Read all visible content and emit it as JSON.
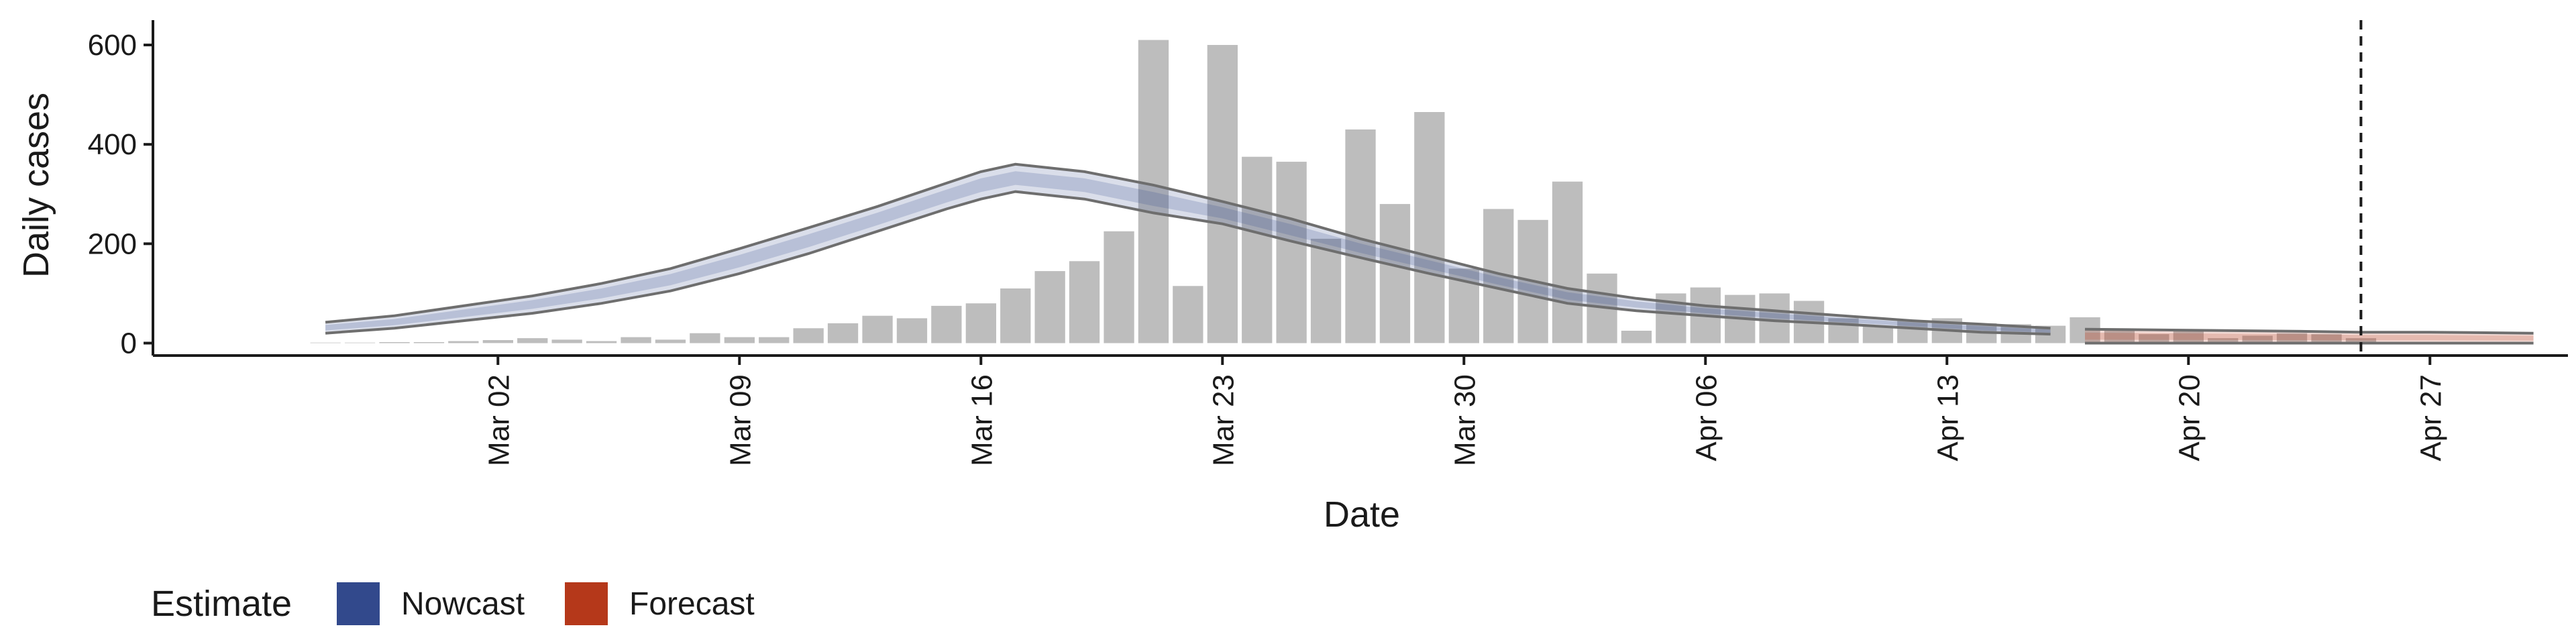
{
  "chart_data": {
    "type": "bar",
    "xlabel": "Date",
    "ylabel": "Daily cases",
    "ylim": [
      -25,
      650
    ],
    "xlim": [
      "2020-02-21",
      "2020-05-01"
    ],
    "yticks": [
      0,
      200,
      400,
      600
    ],
    "xticks": [
      {
        "date": "2020-03-02",
        "label": "Mar 02"
      },
      {
        "date": "2020-03-09",
        "label": "Mar 09"
      },
      {
        "date": "2020-03-16",
        "label": "Mar 16"
      },
      {
        "date": "2020-03-23",
        "label": "Mar 23"
      },
      {
        "date": "2020-03-30",
        "label": "Mar 30"
      },
      {
        "date": "2020-04-06",
        "label": "Apr 06"
      },
      {
        "date": "2020-04-13",
        "label": "Apr 13"
      },
      {
        "date": "2020-04-20",
        "label": "Apr 20"
      },
      {
        "date": "2020-04-27",
        "label": "Apr 27"
      }
    ],
    "grid": false,
    "vline_date": "2020-04-25",
    "bars": {
      "dates": [
        "2020-02-26",
        "2020-02-27",
        "2020-02-28",
        "2020-02-29",
        "2020-03-01",
        "2020-03-02",
        "2020-03-03",
        "2020-03-04",
        "2020-03-05",
        "2020-03-06",
        "2020-03-07",
        "2020-03-08",
        "2020-03-09",
        "2020-03-10",
        "2020-03-11",
        "2020-03-12",
        "2020-03-13",
        "2020-03-14",
        "2020-03-15",
        "2020-03-16",
        "2020-03-17",
        "2020-03-18",
        "2020-03-19",
        "2020-03-20",
        "2020-03-21",
        "2020-03-22",
        "2020-03-23",
        "2020-03-24",
        "2020-03-25",
        "2020-03-26",
        "2020-03-27",
        "2020-03-28",
        "2020-03-29",
        "2020-03-30",
        "2020-03-31",
        "2020-04-01",
        "2020-04-02",
        "2020-04-03",
        "2020-04-04",
        "2020-04-05",
        "2020-04-06",
        "2020-04-07",
        "2020-04-08",
        "2020-04-09",
        "2020-04-10",
        "2020-04-11",
        "2020-04-12",
        "2020-04-13",
        "2020-04-14",
        "2020-04-15",
        "2020-04-16",
        "2020-04-17",
        "2020-04-18",
        "2020-04-19",
        "2020-04-20",
        "2020-04-21",
        "2020-04-22",
        "2020-04-23",
        "2020-04-24",
        "2020-04-25"
      ],
      "values": [
        1,
        1,
        2,
        2,
        4,
        6,
        10,
        7,
        4,
        12,
        7,
        20,
        12,
        12,
        30,
        40,
        55,
        50,
        75,
        80,
        110,
        145,
        165,
        225,
        610,
        115,
        600,
        375,
        365,
        210,
        430,
        280,
        465,
        150,
        270,
        248,
        325,
        140,
        25,
        100,
        112,
        97,
        100,
        85,
        50,
        35,
        45,
        50,
        40,
        38,
        35,
        52,
        28,
        18,
        25,
        10,
        15,
        20,
        18,
        10
      ]
    },
    "series": [
      {
        "name": "Nowcast",
        "color": "#32498c",
        "dates": [
          "2020-02-26",
          "2020-02-28",
          "2020-03-01",
          "2020-03-03",
          "2020-03-05",
          "2020-03-07",
          "2020-03-09",
          "2020-03-11",
          "2020-03-13",
          "2020-03-15",
          "2020-03-16",
          "2020-03-17",
          "2020-03-19",
          "2020-03-21",
          "2020-03-23",
          "2020-03-25",
          "2020-03-27",
          "2020-03-29",
          "2020-03-31",
          "2020-04-02",
          "2020-04-04",
          "2020-04-06",
          "2020-04-08",
          "2020-04-10",
          "2020-04-12",
          "2020-04-14",
          "2020-04-16"
        ],
        "lower": [
          20,
          30,
          45,
          60,
          80,
          105,
          140,
          180,
          225,
          270,
          290,
          305,
          290,
          262,
          240,
          205,
          172,
          140,
          110,
          80,
          65,
          55,
          45,
          38,
          30,
          22,
          18
        ],
        "upper": [
          42,
          55,
          75,
          95,
          120,
          150,
          190,
          232,
          275,
          322,
          345,
          360,
          345,
          318,
          285,
          250,
          210,
          175,
          140,
          110,
          90,
          75,
          65,
          55,
          45,
          38,
          30
        ],
        "mid": [
          31,
          42,
          60,
          78,
          100,
          128,
          165,
          206,
          250,
          296,
          318,
          332,
          318,
          290,
          262,
          228,
          191,
          158,
          125,
          95,
          78,
          65,
          55,
          46,
          38,
          30,
          24
        ]
      },
      {
        "name": "Forecast",
        "color": "#b5381a",
        "dates": [
          "2020-04-17",
          "2020-04-20",
          "2020-04-23",
          "2020-04-25",
          "2020-04-27",
          "2020-04-30"
        ],
        "lower": [
          0,
          0,
          0,
          0,
          0,
          0
        ],
        "upper": [
          28,
          26,
          24,
          22,
          22,
          20
        ],
        "mid": [
          14,
          13,
          12,
          11,
          11,
          10
        ]
      }
    ],
    "legend": {
      "title": "Estimate",
      "placement": "bottom-left",
      "items": [
        {
          "label": "Nowcast",
          "color": "#32498c"
        },
        {
          "label": "Forecast",
          "color": "#b5381a"
        }
      ]
    }
  }
}
